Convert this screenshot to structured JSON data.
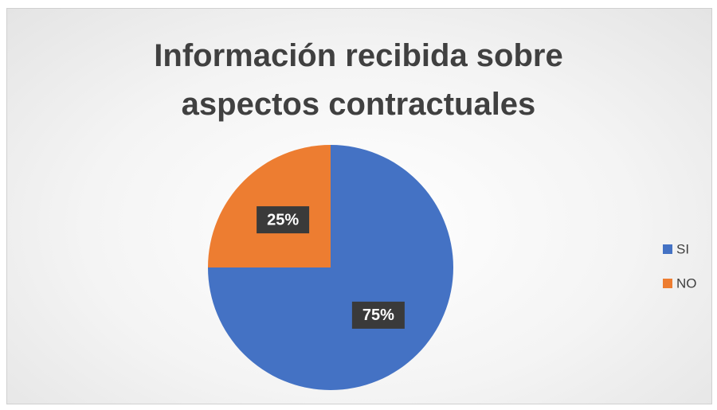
{
  "chart_data": {
    "type": "pie",
    "title": "Información recibida sobre aspectos contractuales",
    "categories": [
      "SI",
      "NO"
    ],
    "values": [
      75,
      25
    ],
    "value_labels": [
      "75%",
      "25%"
    ],
    "colors": [
      "#4472c4",
      "#ed7d31"
    ],
    "legend": "right"
  }
}
